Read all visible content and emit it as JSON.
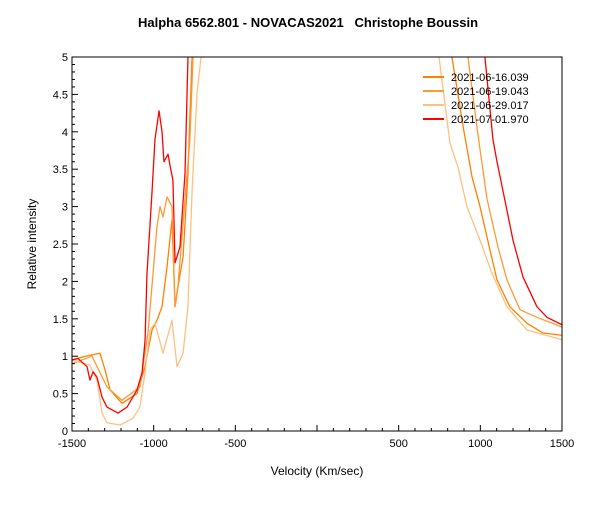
{
  "chart_data": {
    "type": "line",
    "title": "Halpha 6562.801 - NOVACAS2021   Christophe Boussin",
    "xlabel": "Velocity (Km/sec)",
    "ylabel": "Relative intensity",
    "xlim": [
      -1500,
      1500
    ],
    "ylim": [
      0,
      5
    ],
    "x_ticks": [
      -1500,
      -1000,
      -500,
      0,
      500,
      1000,
      1500
    ],
    "x_tick_labels": [
      "-1500",
      "-1000",
      "-500",
      "",
      "500",
      "1000",
      "1500"
    ],
    "y_ticks": [
      0,
      0.5,
      1,
      1.5,
      2,
      2.5,
      3,
      3.5,
      4,
      4.5,
      5
    ],
    "y_tick_labels": [
      "0",
      "0.5",
      "1",
      "1.5",
      "2",
      "2.5",
      "3",
      "3.5",
      "4",
      "4.5",
      "5"
    ],
    "grid": false,
    "legend_position": "top-right",
    "series": [
      {
        "name": "2021-06-16.039",
        "color": "#FF8000",
        "segments": [
          [
            [
              -1500,
              0.95
            ],
            [
              -1420,
              1.0
            ],
            [
              -1329,
              1.04
            ],
            [
              -1298,
              0.82
            ],
            [
              -1267,
              0.55
            ],
            [
              -1194,
              0.37
            ],
            [
              -1102,
              0.5
            ],
            [
              -1053,
              0.86
            ],
            [
              -1010,
              1.35
            ],
            [
              -980,
              1.48
            ],
            [
              -949,
              1.66
            ],
            [
              -918,
              2.2
            ],
            [
              -888,
              2.82
            ],
            [
              -869,
              1.66
            ],
            [
              -851,
              1.93
            ],
            [
              -820,
              2.33
            ],
            [
              -790,
              3.45
            ],
            [
              -765,
              5.0
            ]
          ],
          [
            [
              826,
              5.0
            ],
            [
              900,
              4.0
            ],
            [
              949,
              3.4
            ],
            [
              998,
              3.0
            ],
            [
              1059,
              2.42
            ],
            [
              1102,
              2.02
            ],
            [
              1181,
              1.66
            ],
            [
              1286,
              1.44
            ],
            [
              1384,
              1.31
            ],
            [
              1500,
              1.28
            ]
          ]
        ]
      },
      {
        "name": "2021-06-19.043",
        "color": "#FF9933",
        "segments": [
          [
            [
              -1500,
              0.9
            ],
            [
              -1378,
              1.0
            ],
            [
              -1286,
              0.59
            ],
            [
              -1194,
              0.41
            ],
            [
              -1084,
              0.59
            ],
            [
              -1035,
              1.31
            ],
            [
              -1004,
              2.1
            ],
            [
              -980,
              2.73
            ],
            [
              -961,
              3.0
            ],
            [
              -943,
              2.86
            ],
            [
              -918,
              3.13
            ],
            [
              -888,
              3.0
            ],
            [
              -869,
              1.66
            ],
            [
              -851,
              1.95
            ],
            [
              -778,
              3.9
            ],
            [
              -759,
              5.0
            ]
          ],
          [
            [
              924,
              5.0
            ],
            [
              986,
              3.95
            ],
            [
              1041,
              3.1
            ],
            [
              1108,
              2.46
            ],
            [
              1163,
              2.02
            ],
            [
              1243,
              1.62
            ],
            [
              1347,
              1.52
            ],
            [
              1500,
              1.39
            ]
          ]
        ]
      },
      {
        "name": "2021-06-29.017",
        "color": "#FFC080",
        "segments": [
          [
            [
              -1500,
              0.95
            ],
            [
              -1390,
              0.88
            ],
            [
              -1347,
              0.68
            ],
            [
              -1316,
              0.24
            ],
            [
              -1286,
              0.11
            ],
            [
              -1206,
              0.08
            ],
            [
              -1127,
              0.17
            ],
            [
              -1084,
              0.32
            ],
            [
              -1053,
              0.78
            ],
            [
              -1022,
              1.35
            ],
            [
              -992,
              1.44
            ],
            [
              -943,
              1.04
            ],
            [
              -888,
              1.48
            ],
            [
              -857,
              0.86
            ],
            [
              -820,
              1.04
            ],
            [
              -790,
              1.66
            ],
            [
              -765,
              3.2
            ],
            [
              -735,
              4.5
            ],
            [
              -710,
              5.0
            ]
          ],
          [
            [
              747,
              5.0
            ],
            [
              814,
              3.85
            ],
            [
              863,
              3.53
            ],
            [
              918,
              3.0
            ],
            [
              998,
              2.55
            ],
            [
              1071,
              2.11
            ],
            [
              1163,
              1.66
            ],
            [
              1286,
              1.35
            ],
            [
              1500,
              1.22
            ]
          ]
        ]
      },
      {
        "name": "2021-07-01.970",
        "color": "#FF0000",
        "segments": [
          [
            [
              -1500,
              0.95
            ],
            [
              -1463,
              0.97
            ],
            [
              -1408,
              0.86
            ],
            [
              -1390,
              0.68
            ],
            [
              -1371,
              0.79
            ],
            [
              -1347,
              0.72
            ],
            [
              -1316,
              0.45
            ],
            [
              -1286,
              0.32
            ],
            [
              -1218,
              0.24
            ],
            [
              -1163,
              0.32
            ],
            [
              -1102,
              0.55
            ],
            [
              -1071,
              0.78
            ],
            [
              -1053,
              1.2
            ],
            [
              -1041,
              2.1
            ],
            [
              -1010,
              3.2
            ],
            [
              -992,
              3.9
            ],
            [
              -967,
              4.28
            ],
            [
              -949,
              4.0
            ],
            [
              -937,
              3.6
            ],
            [
              -912,
              3.7
            ],
            [
              -900,
              3.55
            ],
            [
              -882,
              3.35
            ],
            [
              -869,
              2.25
            ],
            [
              -839,
              2.46
            ],
            [
              -808,
              3.45
            ],
            [
              -790,
              5.0
            ]
          ],
          [
            [
              1028,
              5.0
            ],
            [
              1077,
              3.9
            ],
            [
              1102,
              3.6
            ],
            [
              1163,
              2.95
            ],
            [
              1200,
              2.55
            ],
            [
              1261,
              2.06
            ],
            [
              1347,
              1.66
            ],
            [
              1408,
              1.52
            ],
            [
              1500,
              1.42
            ]
          ]
        ]
      }
    ]
  }
}
